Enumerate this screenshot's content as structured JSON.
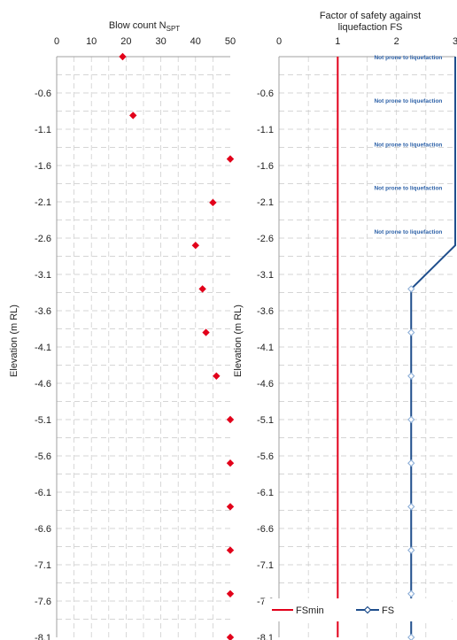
{
  "chart_data": [
    {
      "type": "scatter",
      "title_main": "Blow count N",
      "title_sub": "SPT",
      "ylabel": "Elevation (m RL)",
      "xlim": [
        0,
        50
      ],
      "x_ticks": [
        "0",
        "10",
        "20",
        "30",
        "40",
        "50"
      ],
      "ylim": [
        -8.1,
        -0.1
      ],
      "y_ticks": [
        "-0.6",
        "-1.1",
        "-1.6",
        "-2.1",
        "-2.6",
        "-3.1",
        "-3.6",
        "-4.1",
        "-4.6",
        "-5.1",
        "-5.6",
        "-6.1",
        "-6.6",
        "-7.1",
        "-7.6",
        "-8.1"
      ],
      "grid": true,
      "marker_color": "#e2001a",
      "points": [
        {
          "x": 19,
          "y": -0.1
        },
        {
          "x": 22,
          "y": -0.91
        },
        {
          "x": 50,
          "y": -1.51
        },
        {
          "x": 45,
          "y": -2.11
        },
        {
          "x": 40,
          "y": -2.7
        },
        {
          "x": 42,
          "y": -3.3
        },
        {
          "x": 43,
          "y": -3.9
        },
        {
          "x": 46,
          "y": -4.5
        },
        {
          "x": 50,
          "y": -5.1
        },
        {
          "x": 50,
          "y": -5.7
        },
        {
          "x": 50,
          "y": -6.3
        },
        {
          "x": 50,
          "y": -6.9
        },
        {
          "x": 50,
          "y": -7.5
        },
        {
          "x": 50,
          "y": -8.1
        }
      ]
    },
    {
      "type": "line",
      "title_line1": "Factor of safety against",
      "title_line2": "liquefaction FS",
      "ylabel": "Elevation (m RL)",
      "xlim": [
        0,
        3
      ],
      "x_ticks": [
        "0",
        "1",
        "2",
        "3"
      ],
      "ylim": [
        -8.1,
        -0.1
      ],
      "y_ticks": [
        "-0.6",
        "-1.1",
        "-1.6",
        "-2.1",
        "-2.6",
        "-3.1",
        "-3.6",
        "-4.1",
        "-4.6",
        "-5.1",
        "-5.6",
        "-6.1",
        "-6.6",
        "-7.1",
        "-7.6",
        "-8.1"
      ],
      "grid": true,
      "annotations": [
        {
          "text": "Not prone to liquefaction",
          "x": 2.2,
          "y": -0.1
        },
        {
          "text": "Not prone to liquefaction",
          "x": 2.2,
          "y": -0.7
        },
        {
          "text": "Not prone to liquefaction",
          "x": 2.2,
          "y": -1.3
        },
        {
          "text": "Not prone to liquefaction",
          "x": 2.2,
          "y": -1.9
        },
        {
          "text": "Not prone to liquefaction",
          "x": 2.2,
          "y": -2.5
        }
      ],
      "series": [
        {
          "name": "FSmin",
          "color": "#e2001a",
          "marker": "none",
          "points": [
            {
              "x": 1,
              "y": -0.1
            },
            {
              "x": 1,
              "y": -8.1
            }
          ]
        },
        {
          "name": "FS",
          "color": "#1f4e8c",
          "marker": "diamond-open",
          "points": [
            {
              "x": 3,
              "y": -0.1
            },
            {
              "x": 3,
              "y": -2.7
            },
            {
              "x": 2.25,
              "y": -3.3
            },
            {
              "x": 2.25,
              "y": -3.9
            },
            {
              "x": 2.25,
              "y": -4.5
            },
            {
              "x": 2.25,
              "y": -5.1
            },
            {
              "x": 2.25,
              "y": -5.7
            },
            {
              "x": 2.25,
              "y": -6.3
            },
            {
              "x": 2.25,
              "y": -6.9
            },
            {
              "x": 2.25,
              "y": -7.5
            },
            {
              "x": 2.25,
              "y": -8.1
            }
          ]
        }
      ],
      "legend_placement": "bottom"
    }
  ]
}
